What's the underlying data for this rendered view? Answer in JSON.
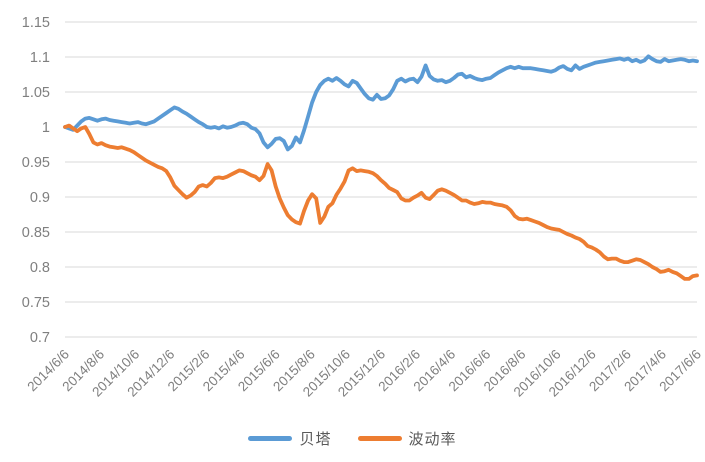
{
  "chart_data": {
    "type": "line",
    "title": "",
    "xlabel": "",
    "ylabel": "",
    "grid": "horizontal",
    "legend_position": "bottom",
    "ylim": [
      0.7,
      1.15
    ],
    "y_ticks": [
      1.15,
      1.1,
      1.05,
      1,
      0.95,
      0.9,
      0.85,
      0.8,
      0.75,
      0.7
    ],
    "y_tick_labels": [
      "1.15",
      "1.1",
      "1.05",
      "1",
      "0.95",
      "0.9",
      "0.85",
      "0.8",
      "0.75",
      "0.7"
    ],
    "x_tick_labels": [
      "2014/6/6",
      "2014/8/6",
      "2014/10/6",
      "2014/12/6",
      "2015/2/6",
      "2015/4/6",
      "2015/6/6",
      "2015/8/6",
      "2015/10/6",
      "2015/12/6",
      "2016/2/6",
      "2016/4/6",
      "2016/6/6",
      "2016/8/6",
      "2016/10/6",
      "2016/12/6",
      "2017/2/6",
      "2017/4/6",
      "2017/6/6"
    ],
    "x_unit": "weekly samples from 2014/6/6 to 2017/6/6",
    "series": [
      {
        "name": "贝塔",
        "color": "#5B9BD5",
        "values": [
          1.0,
          0.998,
          0.996,
          1.002,
          1.008,
          1.012,
          1.013,
          1.011,
          1.009,
          1.011,
          1.012,
          1.01,
          1.009,
          1.008,
          1.007,
          1.006,
          1.005,
          1.006,
          1.007,
          1.005,
          1.004,
          1.006,
          1.008,
          1.012,
          1.016,
          1.02,
          1.024,
          1.028,
          1.026,
          1.022,
          1.019,
          1.015,
          1.011,
          1.007,
          1.004,
          1.0,
          0.999,
          1.0,
          0.998,
          1.001,
          0.999,
          1.0,
          1.002,
          1.005,
          1.006,
          1.004,
          0.999,
          0.997,
          0.991,
          0.978,
          0.971,
          0.976,
          0.983,
          0.984,
          0.98,
          0.968,
          0.973,
          0.985,
          0.978,
          0.995,
          1.015,
          1.035,
          1.05,
          1.06,
          1.066,
          1.069,
          1.066,
          1.07,
          1.066,
          1.061,
          1.058,
          1.066,
          1.063,
          1.055,
          1.047,
          1.041,
          1.039,
          1.046,
          1.04,
          1.041,
          1.045,
          1.054,
          1.066,
          1.069,
          1.065,
          1.068,
          1.069,
          1.064,
          1.072,
          1.088,
          1.073,
          1.068,
          1.066,
          1.067,
          1.064,
          1.066,
          1.07,
          1.075,
          1.076,
          1.071,
          1.073,
          1.07,
          1.068,
          1.067,
          1.069,
          1.07,
          1.074,
          1.078,
          1.081,
          1.084,
          1.086,
          1.084,
          1.086,
          1.084,
          1.084,
          1.084,
          1.083,
          1.082,
          1.081,
          1.08,
          1.079,
          1.081,
          1.085,
          1.087,
          1.083,
          1.081,
          1.088,
          1.083,
          1.086,
          1.088,
          1.09,
          1.092,
          1.093,
          1.094,
          1.095,
          1.096,
          1.097,
          1.098,
          1.096,
          1.098,
          1.094,
          1.096,
          1.093,
          1.095,
          1.101,
          1.097,
          1.094,
          1.093,
          1.097,
          1.094,
          1.095,
          1.096,
          1.097,
          1.096,
          1.094,
          1.095,
          1.094
        ]
      },
      {
        "name": "波动率",
        "color": "#ED7D31",
        "values": [
          1.0,
          1.002,
          0.998,
          0.994,
          0.998,
          1.0,
          0.99,
          0.978,
          0.975,
          0.977,
          0.974,
          0.972,
          0.971,
          0.97,
          0.971,
          0.969,
          0.967,
          0.964,
          0.96,
          0.956,
          0.952,
          0.949,
          0.946,
          0.943,
          0.941,
          0.937,
          0.928,
          0.916,
          0.91,
          0.904,
          0.899,
          0.902,
          0.907,
          0.915,
          0.917,
          0.915,
          0.92,
          0.927,
          0.928,
          0.927,
          0.929,
          0.932,
          0.935,
          0.938,
          0.937,
          0.934,
          0.931,
          0.929,
          0.924,
          0.93,
          0.947,
          0.938,
          0.915,
          0.898,
          0.885,
          0.874,
          0.868,
          0.864,
          0.862,
          0.88,
          0.895,
          0.904,
          0.898,
          0.863,
          0.872,
          0.886,
          0.891,
          0.903,
          0.912,
          0.922,
          0.938,
          0.941,
          0.937,
          0.938,
          0.937,
          0.936,
          0.934,
          0.93,
          0.924,
          0.919,
          0.913,
          0.91,
          0.907,
          0.898,
          0.895,
          0.895,
          0.899,
          0.902,
          0.906,
          0.899,
          0.897,
          0.903,
          0.909,
          0.911,
          0.909,
          0.906,
          0.903,
          0.899,
          0.895,
          0.895,
          0.892,
          0.89,
          0.891,
          0.893,
          0.892,
          0.892,
          0.89,
          0.889,
          0.888,
          0.886,
          0.881,
          0.873,
          0.869,
          0.868,
          0.869,
          0.867,
          0.865,
          0.863,
          0.86,
          0.857,
          0.855,
          0.854,
          0.853,
          0.85,
          0.847,
          0.845,
          0.842,
          0.84,
          0.836,
          0.83,
          0.828,
          0.825,
          0.821,
          0.815,
          0.811,
          0.812,
          0.812,
          0.809,
          0.807,
          0.807,
          0.809,
          0.811,
          0.81,
          0.807,
          0.804,
          0.8,
          0.797,
          0.793,
          0.794,
          0.796,
          0.793,
          0.791,
          0.787,
          0.783,
          0.783,
          0.787,
          0.788
        ]
      }
    ],
    "colors": {
      "beta_line": "#5B9BD5",
      "volatility_line": "#ED7D31",
      "gridline": "#D9D9D9",
      "axis_text": "#7F7F7F",
      "legend_text": "#595959",
      "background": "#FFFFFF"
    }
  }
}
